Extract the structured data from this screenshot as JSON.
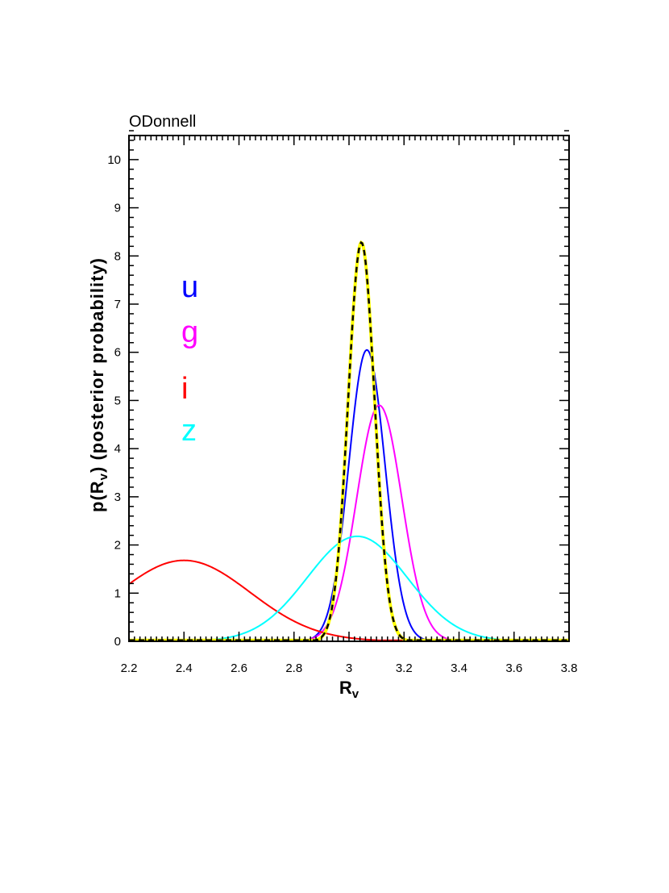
{
  "chart_data": {
    "type": "line",
    "title": "ODonnell",
    "xlabel": "R",
    "xlabel_sub": "v",
    "ylabel_pre": "p(R",
    "ylabel_sub": "v",
    "ylabel_post": ")  (posterior probability)",
    "xlim": [
      2.2,
      3.8
    ],
    "ylim": [
      0,
      10.5
    ],
    "x_ticks": [
      2.2,
      2.4,
      2.6,
      2.8,
      3.0,
      3.2,
      3.4,
      3.6,
      3.8
    ],
    "x_tick_labels": [
      "2.2",
      "2.4",
      "2.6",
      "2.8",
      "3",
      "3.2",
      "3.4",
      "3.6",
      "3.8"
    ],
    "y_ticks": [
      0,
      1,
      2,
      3,
      4,
      5,
      6,
      7,
      8,
      9,
      10
    ],
    "y_tick_labels": [
      "0",
      "1",
      "2",
      "3",
      "4",
      "5",
      "6",
      "7",
      "8",
      "9",
      "10"
    ],
    "grid": false,
    "legend_position": "left",
    "series": [
      {
        "name": "u",
        "color": "#0000ff",
        "style": "solid",
        "peak_x": 3.065,
        "peak_y": 6.05,
        "sigma": 0.066
      },
      {
        "name": "g",
        "color": "#ff00ff",
        "style": "solid",
        "peak_x": 3.11,
        "peak_y": 4.9,
        "sigma": 0.082
      },
      {
        "name": "i",
        "color": "#ff0000",
        "style": "solid",
        "peak_x": 2.4,
        "peak_y": 1.68,
        "sigma": 0.24
      },
      {
        "name": "z",
        "color": "#00ffff",
        "style": "solid",
        "peak_x": 3.03,
        "peak_y": 2.18,
        "sigma": 0.182
      },
      {
        "name": "",
        "color": "#ffff00",
        "style": "solid",
        "peak_x": 3.045,
        "peak_y": 8.28,
        "sigma": 0.048
      },
      {
        "name": "",
        "color": "#000000",
        "style": "dashed",
        "peak_x": 3.045,
        "peak_y": 8.28,
        "sigma": 0.048
      }
    ]
  }
}
